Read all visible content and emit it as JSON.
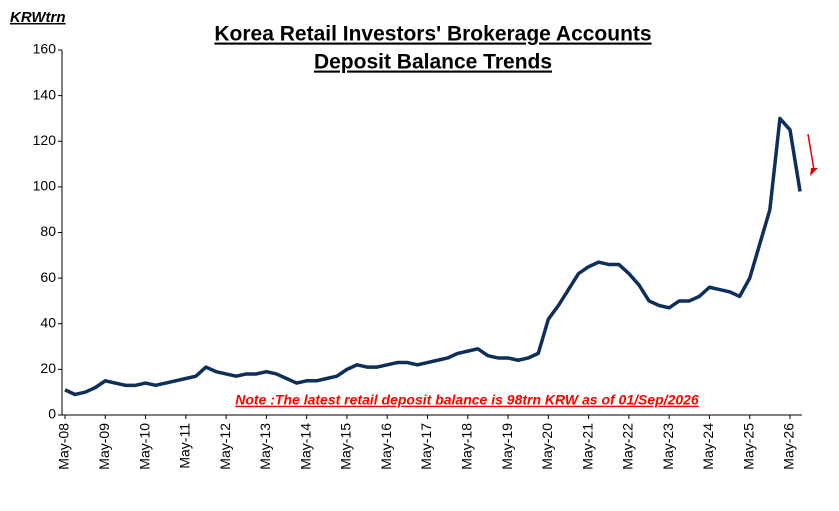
{
  "chart_data": {
    "type": "line",
    "title": [
      "Korea Retail Investors' Brokerage Accounts",
      "Deposit Balance Trends"
    ],
    "y_label": "KRWtrn",
    "annotation": "Note :The latest retail deposit balance  is 98trn KRW as of 01/Sep/2026",
    "categories": [
      "May-08",
      null,
      null,
      null,
      "May-09",
      null,
      null,
      null,
      "May-10",
      null,
      null,
      null,
      "May-11",
      null,
      null,
      null,
      "May-12",
      null,
      null,
      null,
      "May-13",
      null,
      null,
      null,
      "May-14",
      null,
      null,
      null,
      "May-15",
      null,
      null,
      null,
      "May-16",
      null,
      null,
      null,
      "May-17",
      null,
      null,
      null,
      "May-18",
      null,
      null,
      null,
      "May-19",
      null,
      null,
      null,
      "May-20",
      null,
      null,
      null,
      "May-21",
      null,
      null,
      null,
      "May-22",
      null,
      null,
      null,
      "May-23",
      null,
      null,
      null,
      "May-24",
      null,
      null,
      null,
      "May-25",
      null,
      null,
      null,
      "May-26",
      null
    ],
    "series": [
      {
        "name": "Deposit balance",
        "color": "#0d2f5a",
        "values": [
          11,
          9,
          10,
          12,
          15,
          14,
          13,
          13,
          14,
          13,
          14,
          15,
          16,
          17,
          21,
          19,
          18,
          17,
          18,
          18,
          19,
          18,
          16,
          14,
          15,
          15,
          16,
          17,
          20,
          22,
          21,
          21,
          22,
          23,
          23,
          22,
          23,
          24,
          25,
          27,
          28,
          29,
          26,
          25,
          25,
          24,
          25,
          27,
          42,
          48,
          55,
          62,
          65,
          67,
          66,
          66,
          62,
          57,
          50,
          48,
          47,
          50,
          50,
          52,
          56,
          55,
          54,
          52,
          60,
          75,
          90,
          130,
          125,
          98
        ]
      }
    ],
    "ylim": [
      0,
      160
    ],
    "yticks": [
      0,
      20,
      40,
      60,
      80,
      100,
      120,
      140,
      160
    ],
    "grid": false
  }
}
